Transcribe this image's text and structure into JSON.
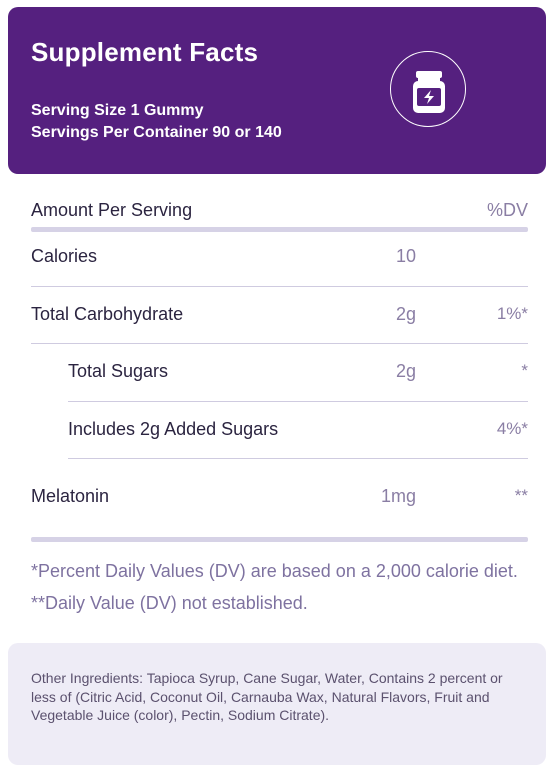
{
  "header": {
    "title": "Supplement Facts",
    "serving_size": "Serving Size 1 Gummy",
    "servings_per_container": "Servings Per Container 90 or 140",
    "icon": "supplement-jar-lightning-icon",
    "bg_color": "#55207f"
  },
  "table": {
    "header_label": "Amount Per Serving",
    "header_dv": "%DV",
    "rows": [
      {
        "label": "Calories",
        "amount": "10",
        "dv": ""
      },
      {
        "label": "Total Carbohydrate",
        "amount": "2g",
        "dv": "1%*"
      },
      {
        "label": "Total Sugars",
        "amount": "2g",
        "dv": "*"
      },
      {
        "label": "Includes 2g Added Sugars",
        "amount": "",
        "dv": "4%*"
      },
      {
        "label": "Melatonin",
        "amount": "1mg",
        "dv": "**"
      }
    ]
  },
  "footnote": "*Percent Daily Values (DV) are based on a 2,000 calorie diet. **Daily Value (DV) not established.",
  "ingredients": "Other Ingredients: Tapioca Syrup, Cane Sugar, Water, Contains 2 percent or less of (Citric Acid, Coconut Oil, Carnauba Wax, Natural Flavors, Fruit and Vegetable Juice (color), Pectin, Sodium Citrate)."
}
